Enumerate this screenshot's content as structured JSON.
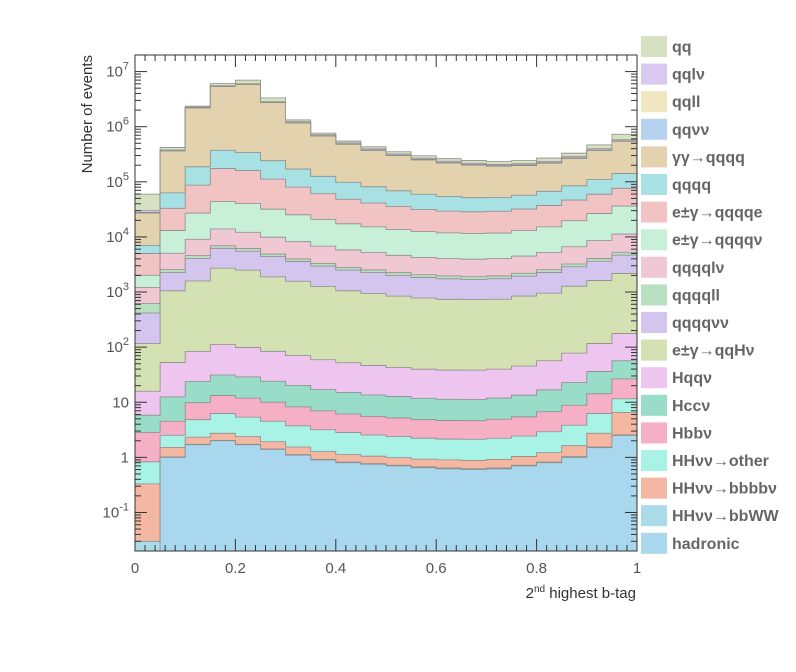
{
  "chart_data": {
    "type": "area",
    "subtype": "stacked-histogram",
    "xlabel": "2nd highest b-tag",
    "xlabel_base": "2",
    "xlabel_sup": "nd",
    "xlabel_rest": " highest b-tag",
    "ylabel": "Number of events",
    "yscale": "log",
    "xlim": [
      0,
      1
    ],
    "ylim": [
      0.02,
      20000000
    ],
    "grid": false,
    "legend_position": "right",
    "x_ticks": [
      {
        "value": 0,
        "label": "0"
      },
      {
        "value": 0.2,
        "label": "0.2"
      },
      {
        "value": 0.4,
        "label": "0.4"
      },
      {
        "value": 0.6,
        "label": "0.6"
      },
      {
        "value": 0.8,
        "label": "0.8"
      },
      {
        "value": 1,
        "label": "1"
      }
    ],
    "y_ticks": [
      {
        "value": 0.1,
        "base": "10",
        "exp": "-1"
      },
      {
        "value": 1,
        "base": "1",
        "exp": ""
      },
      {
        "value": 10,
        "base": "10",
        "exp": ""
      },
      {
        "value": 100,
        "base": "10",
        "exp": "2"
      },
      {
        "value": 1000,
        "base": "10",
        "exp": "3"
      },
      {
        "value": 10000,
        "base": "10",
        "exp": "4"
      },
      {
        "value": 100000,
        "base": "10",
        "exp": "5"
      },
      {
        "value": 1000000,
        "base": "10",
        "exp": "6"
      },
      {
        "value": 10000000,
        "base": "10",
        "exp": "7"
      }
    ],
    "x": [
      0.025,
      0.075,
      0.125,
      0.175,
      0.225,
      0.275,
      0.325,
      0.375,
      0.425,
      0.475,
      0.525,
      0.575,
      0.625,
      0.675,
      0.725,
      0.775,
      0.825,
      0.875,
      0.925,
      0.975
    ],
    "series": [
      {
        "name": "hadronic",
        "color": "#a9d7ed",
        "values": [
          0.02,
          1.0,
          1.7,
          2.0,
          1.7,
          1.4,
          1.1,
          0.9,
          0.8,
          0.75,
          0.7,
          0.65,
          0.62,
          0.6,
          0.62,
          0.7,
          0.8,
          1.0,
          1.5,
          2.5
        ]
      },
      {
        "name": "HHνν→bbWW",
        "color": "#aadbe8",
        "values": [
          0.01,
          0.02,
          0.03,
          0.03,
          0.03,
          0.02,
          0.02,
          0.02,
          0.02,
          0.02,
          0.02,
          0.02,
          0.02,
          0.02,
          0.02,
          0.02,
          0.02,
          0.03,
          0.04,
          0.06
        ]
      },
      {
        "name": "HHνν→bbbbν",
        "color": "#f4b7a2",
        "values": [
          0.3,
          0.5,
          0.6,
          0.7,
          0.65,
          0.5,
          0.42,
          0.35,
          0.3,
          0.28,
          0.27,
          0.26,
          0.26,
          0.26,
          0.28,
          0.32,
          0.4,
          0.6,
          1.2,
          4.0
        ]
      },
      {
        "name": "HHνν→other",
        "color": "#a8f2e6",
        "values": [
          0.5,
          1.0,
          2.5,
          3.5,
          3.0,
          2.6,
          2.2,
          1.9,
          1.7,
          1.5,
          1.4,
          1.3,
          1.25,
          1.25,
          1.3,
          1.4,
          1.7,
          2.2,
          3.5,
          5.0
        ]
      },
      {
        "name": "Hbbν",
        "color": "#f6b0c6",
        "values": [
          2.0,
          2.0,
          5.0,
          7.0,
          6.5,
          5.5,
          4.5,
          3.8,
          3.3,
          3.0,
          2.8,
          2.6,
          2.5,
          2.5,
          2.7,
          3.0,
          3.8,
          5.0,
          8.0,
          15.0
        ]
      },
      {
        "name": "Hccν",
        "color": "#99dcc8",
        "values": [
          3.0,
          8.0,
          14.0,
          18.0,
          17.0,
          14.0,
          12.0,
          10.0,
          9.0,
          8.0,
          7.5,
          7.0,
          6.7,
          6.6,
          7.0,
          8.0,
          10.0,
          14.0,
          22.0,
          30.0
        ]
      },
      {
        "name": "Hqqν",
        "color": "#eec5ee",
        "values": [
          10.0,
          40.0,
          60.0,
          80.0,
          70.0,
          60.0,
          50.0,
          42.0,
          37.0,
          33.0,
          30.0,
          28.0,
          27.0,
          27.0,
          28.0,
          32.0,
          40.0,
          55.0,
          80.0,
          120.0
        ]
      },
      {
        "name": "e±γ→qqHν",
        "color": "#d4e2b3",
        "values": [
          100.0,
          1000.0,
          1500.0,
          2600.0,
          2400.0,
          1800.0,
          1500.0,
          1200.0,
          1000.0,
          900.0,
          800.0,
          740.0,
          700.0,
          690.0,
          700.0,
          800.0,
          900.0,
          1200.0,
          1500.0,
          2000.0
        ]
      },
      {
        "name": "qqqqνν",
        "color": "#d4c5ef",
        "values": [
          300.0,
          1200.0,
          2500.0,
          3500.0,
          3000.0,
          2500.0,
          2000.0,
          1700.0,
          1450.0,
          1300.0,
          1150.0,
          1050.0,
          1000.0,
          950.0,
          1000.0,
          1100.0,
          1300.0,
          1600.0,
          2000.0,
          2500.0
        ]
      },
      {
        "name": "qqqqll",
        "color": "#b9dfc1",
        "values": [
          200.0,
          300.0,
          500.0,
          700.0,
          650.0,
          500.0,
          420.0,
          350.0,
          300.0,
          270.0,
          250.0,
          230.0,
          220.0,
          215.0,
          220.0,
          250.0,
          280.0,
          350.0,
          450.0,
          600.0
        ]
      },
      {
        "name": "qqqqlν",
        "color": "#f0c8d4",
        "values": [
          600.0,
          2500.0,
          4500.0,
          7000.0,
          6000.0,
          5000.0,
          4200.0,
          3500.0,
          3000.0,
          2700.0,
          2400.0,
          2200.0,
          2100.0,
          2050.0,
          2100.0,
          2300.0,
          2700.0,
          3400.0,
          4500.0,
          6000.0
        ]
      },
      {
        "name": "e±γ→qqqqν",
        "color": "#c8f0d8",
        "values": [
          800.0,
          8000.0,
          18000.0,
          30000.0,
          28000.0,
          22000.0,
          17000.0,
          14000.0,
          11500.0,
          10000.0,
          9000.0,
          8200.0,
          7800.0,
          7600.0,
          7700.0,
          8500.0,
          10000.0,
          13000.0,
          18000.0,
          25000.0
        ]
      },
      {
        "name": "e±γ→qqqqe",
        "color": "#f2c3c3",
        "values": [
          3000.0,
          20000.0,
          60000.0,
          130000.0,
          120000.0,
          80000.0,
          55000.0,
          40000.0,
          31000.0,
          26000.0,
          22000.0,
          19000.0,
          17500.0,
          17000.0,
          17500.0,
          19000.0,
          22000.0,
          27000.0,
          33000.0,
          40000.0
        ]
      },
      {
        "name": "qqqq",
        "color": "#a8e1e3",
        "values": [
          2000.0,
          30000.0,
          100000.0,
          200000.0,
          180000.0,
          130000.0,
          90000.0,
          65000.0,
          50000.0,
          40000.0,
          33000.0,
          28000.0,
          25000.0,
          23000.0,
          23000.0,
          25000.0,
          30000.0,
          38000.0,
          50000.0,
          65000.0
        ]
      },
      {
        "name": "γγ→qqqq",
        "color": "#e2d2ae",
        "values": [
          20000.0,
          300000.0,
          2000000.0,
          5000000.0,
          5500000.0,
          2500000.0,
          1000000.0,
          550000.0,
          380000.0,
          290000.0,
          230000.0,
          190000.0,
          165000.0,
          150000.0,
          140000.0,
          140000.0,
          150000.0,
          180000.0,
          260000.0,
          400000.0
        ]
      },
      {
        "name": "qqνν",
        "color": "#b5d2f0",
        "values": [
          500.0,
          3000.0,
          10000.0,
          25000.0,
          25000.0,
          15000.0,
          9000.0,
          6000.0,
          4500.0,
          3800.0,
          3200.0,
          2800.0,
          2500.0,
          2300.0,
          2200.0,
          2300.0,
          2600.0,
          3200.0,
          4500.0,
          6000.0
        ]
      },
      {
        "name": "qqll",
        "color": "#f0e6c0",
        "values": [
          300.0,
          2000.0,
          8000.0,
          20000.0,
          20000.0,
          12000.0,
          7000.0,
          5000.0,
          3800.0,
          3200.0,
          2700.0,
          2400.0,
          2200.0,
          2000.0,
          1900.0,
          2000.0,
          2300.0,
          2800.0,
          3800.0,
          5000.0
        ]
      },
      {
        "name": "qqlν",
        "color": "#dac9ee",
        "values": [
          2000.0,
          10000.0,
          50000.0,
          120000.0,
          120000.0,
          70000.0,
          40000.0,
          28000.0,
          22000.0,
          18000.0,
          15500.0,
          13500.0,
          12000.0,
          11000.0,
          10500.0,
          11000.0,
          12500.0,
          15000.0,
          20000.0,
          27000.0
        ]
      },
      {
        "name": "qq",
        "color": "#d6e1c2",
        "values": [
          30000.0,
          40000.0,
          100000.0,
          500000.0,
          1000000.0,
          500000.0,
          100000.0,
          50000.0,
          40000.0,
          35000.0,
          31000.0,
          29000.0,
          27000.0,
          26000.0,
          27000.0,
          30000.0,
          35000.0,
          45000.0,
          70000.0,
          150000.0
        ]
      }
    ]
  }
}
